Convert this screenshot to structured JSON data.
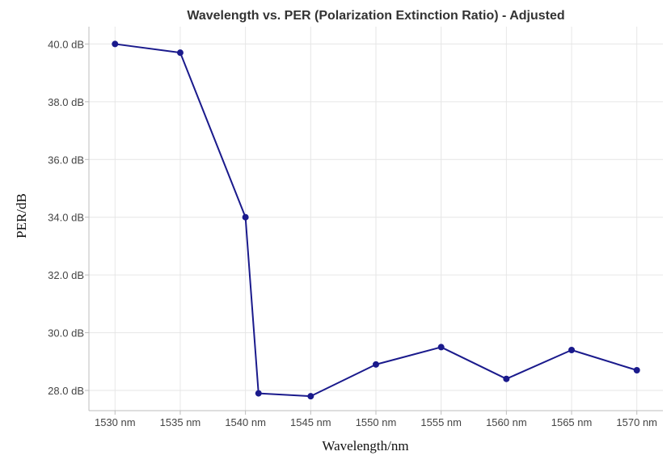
{
  "chart_data": {
    "type": "line",
    "title": "Wavelength vs. PER (Polarization Extinction Ratio) - Adjusted",
    "xlabel": "Wavelength/nm",
    "ylabel": "PER/dB",
    "x": [
      1530,
      1535,
      1540,
      1541,
      1545,
      1550,
      1555,
      1560,
      1565,
      1570
    ],
    "series": [
      {
        "name": "PER",
        "color": "#1a1a8c",
        "values": [
          40.0,
          39.7,
          34.0,
          27.9,
          27.8,
          28.9,
          29.5,
          28.4,
          29.4,
          28.7
        ]
      }
    ],
    "xlim": [
      1528,
      1572
    ],
    "ylim": [
      27.3,
      40.6
    ],
    "x_ticks": [
      1530,
      1535,
      1540,
      1545,
      1550,
      1555,
      1560,
      1565,
      1570
    ],
    "x_tick_labels": [
      "1530 nm",
      "1535 nm",
      "1540 nm",
      "1545 nm",
      "1550 nm",
      "1555 nm",
      "1560 nm",
      "1565 nm",
      "1570 nm"
    ],
    "y_ticks": [
      28,
      30,
      32,
      34,
      36,
      38,
      40
    ],
    "y_tick_labels": [
      "28.0 dB",
      "30.0 dB",
      "32.0 dB",
      "34.0 dB",
      "36.0 dB",
      "38.0 dB",
      "40.0 dB"
    ],
    "grid": true,
    "legend": "none"
  }
}
